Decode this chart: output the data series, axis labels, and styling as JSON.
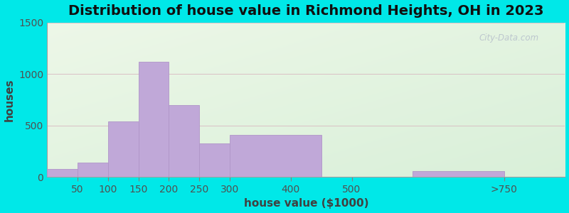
{
  "title": "Distribution of house value in Richmond Heights, OH in 2023",
  "xlabel": "house value ($1000)",
  "ylabel": "houses",
  "bar_lefts": [
    0,
    50,
    100,
    150,
    200,
    250,
    300,
    450,
    600,
    750
  ],
  "bar_rights": [
    50,
    100,
    150,
    200,
    250,
    300,
    450,
    600,
    750,
    850
  ],
  "bar_values": [
    80,
    140,
    540,
    1120,
    700,
    330,
    410,
    0,
    60,
    0
  ],
  "tick_positions": [
    50,
    100,
    150,
    200,
    250,
    300,
    400,
    500,
    750
  ],
  "tick_labels": [
    "50",
    "100",
    "150",
    "200",
    "250",
    "300",
    "400",
    "500",
    ">750"
  ],
  "bar_color": "#c0a8d8",
  "bar_edgecolor": "#b095c8",
  "ylim": [
    0,
    1500
  ],
  "yticks": [
    0,
    500,
    1000,
    1500
  ],
  "xlim": [
    0,
    850
  ],
  "title_fontsize": 14,
  "label_fontsize": 11,
  "tick_fontsize": 10,
  "bg_outer": "#00e8e8",
  "bg_top_left": "#d8eedc",
  "bg_bottom_right": "#c8eee0",
  "watermark": "City-Data.com"
}
